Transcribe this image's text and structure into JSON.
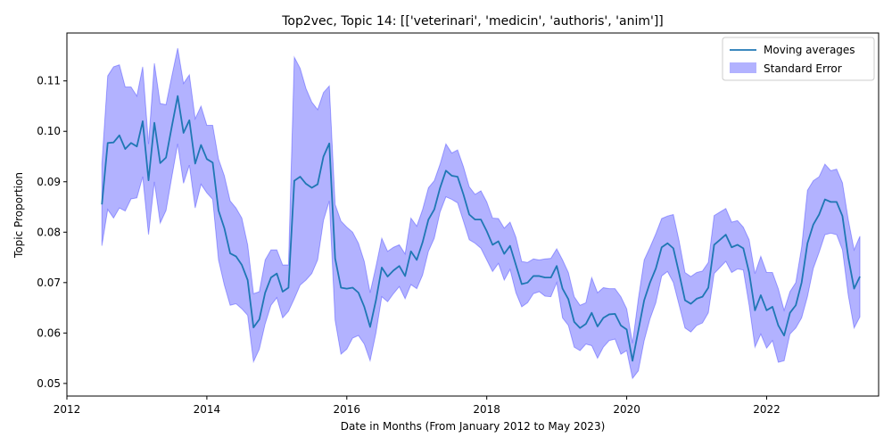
{
  "chart_data": {
    "type": "line",
    "title": "Top2vec, Topic 14: [['veterinari', 'medicin', 'authoris', 'anim']]",
    "xlabel": "Date in Months (From January 2012 to May 2023)",
    "ylabel": "Topic Proportion",
    "xlim": [
      2012.0,
      2023.6
    ],
    "ylim": [
      0.0475,
      0.1195
    ],
    "x_ticks": [
      2012,
      2014,
      2016,
      2018,
      2020,
      2022
    ],
    "x_tick_labels": [
      "2012",
      "2014",
      "2016",
      "2018",
      "2020",
      "2022"
    ],
    "y_ticks": [
      0.05,
      0.06,
      0.07,
      0.08,
      0.09,
      0.1,
      0.11
    ],
    "y_tick_labels": [
      "0.05",
      "0.06",
      "0.07",
      "0.08",
      "0.09",
      "0.10",
      "0.11"
    ],
    "grid": false,
    "legend": {
      "position": "top-right",
      "entries": [
        "Moving averages",
        "Standard Error"
      ]
    },
    "colors": {
      "line": "#1f77b4",
      "band": "#0000ff",
      "band_opacity": 0.3
    },
    "x_start": 2012.5,
    "x_step": 0.08333,
    "series": [
      {
        "name": "Moving averages",
        "values": [
          0.0855,
          0.0977,
          0.0978,
          0.0992,
          0.0965,
          0.0977,
          0.097,
          0.102,
          0.0903,
          0.1017,
          0.0937,
          0.0948,
          0.101,
          0.107,
          0.0997,
          0.1022,
          0.0936,
          0.0973,
          0.0945,
          0.0938,
          0.0843,
          0.0808,
          0.0758,
          0.0752,
          0.0735,
          0.0705,
          0.0611,
          0.0627,
          0.068,
          0.071,
          0.0718,
          0.0682,
          0.069,
          0.0902,
          0.091,
          0.0896,
          0.0888,
          0.0895,
          0.095,
          0.0976,
          0.0748,
          0.069,
          0.0688,
          0.069,
          0.068,
          0.0652,
          0.0612,
          0.0665,
          0.073,
          0.0712,
          0.0724,
          0.0733,
          0.0713,
          0.0762,
          0.0745,
          0.078,
          0.0825,
          0.0845,
          0.0888,
          0.0922,
          0.0912,
          0.091,
          0.0875,
          0.0835,
          0.0825,
          0.0825,
          0.0802,
          0.0775,
          0.0782,
          0.0757,
          0.0773,
          0.0735,
          0.0697,
          0.07,
          0.0713,
          0.0713,
          0.071,
          0.071,
          0.0733,
          0.0688,
          0.0667,
          0.0622,
          0.061,
          0.0618,
          0.064,
          0.0613,
          0.063,
          0.0637,
          0.0638,
          0.0615,
          0.0607,
          0.0545,
          0.0605,
          0.0665,
          0.07,
          0.0728,
          0.077,
          0.0778,
          0.0768,
          0.0718,
          0.0665,
          0.0658,
          0.0668,
          0.0672,
          0.069,
          0.0775,
          0.0785,
          0.0795,
          0.077,
          0.0775,
          0.0768,
          0.072,
          0.0645,
          0.0675,
          0.0645,
          0.0652,
          0.0615,
          0.0595,
          0.064,
          0.0655,
          0.07,
          0.0778,
          0.0815,
          0.0835,
          0.0865,
          0.086,
          0.086,
          0.0832,
          0.075,
          0.0688,
          0.0712
        ]
      },
      {
        "name": "Standard Error",
        "upper": [
          0.0935,
          0.111,
          0.1128,
          0.1132,
          0.1088,
          0.1088,
          0.107,
          0.1128,
          0.0975,
          0.1135,
          0.1055,
          0.1053,
          0.111,
          0.1165,
          0.1095,
          0.1112,
          0.1025,
          0.105,
          0.1012,
          0.1012,
          0.0945,
          0.0912,
          0.0862,
          0.0848,
          0.0828,
          0.0775,
          0.0678,
          0.0682,
          0.0745,
          0.0765,
          0.0765,
          0.0735,
          0.0735,
          0.1147,
          0.1125,
          0.1085,
          0.1058,
          0.1043,
          0.1077,
          0.109,
          0.0855,
          0.0822,
          0.081,
          0.08,
          0.0778,
          0.0742,
          0.068,
          0.0732,
          0.0788,
          0.0762,
          0.077,
          0.0775,
          0.0757,
          0.0828,
          0.0812,
          0.0845,
          0.0888,
          0.0902,
          0.0935,
          0.0975,
          0.0957,
          0.0963,
          0.093,
          0.089,
          0.0875,
          0.0882,
          0.086,
          0.0828,
          0.0827,
          0.0808,
          0.082,
          0.079,
          0.0742,
          0.074,
          0.0747,
          0.0745,
          0.0747,
          0.0748,
          0.0767,
          0.0745,
          0.072,
          0.0672,
          0.0655,
          0.066,
          0.071,
          0.068,
          0.069,
          0.0688,
          0.0688,
          0.0672,
          0.0648,
          0.058,
          0.0668,
          0.0745,
          0.077,
          0.0797,
          0.0827,
          0.0832,
          0.0835,
          0.0782,
          0.072,
          0.0712,
          0.072,
          0.0723,
          0.074,
          0.0833,
          0.084,
          0.0847,
          0.082,
          0.0823,
          0.081,
          0.0785,
          0.0718,
          0.0752,
          0.072,
          0.072,
          0.0688,
          0.0645,
          0.0682,
          0.07,
          0.077,
          0.0883,
          0.0902,
          0.091,
          0.0935,
          0.0922,
          0.0925,
          0.0898,
          0.0825,
          0.0765,
          0.0792
        ],
        "lower": [
          0.0773,
          0.0845,
          0.0828,
          0.0848,
          0.0842,
          0.0866,
          0.0868,
          0.091,
          0.0795,
          0.09,
          0.0818,
          0.0843,
          0.091,
          0.0975,
          0.0897,
          0.0933,
          0.0848,
          0.0895,
          0.0878,
          0.0865,
          0.0745,
          0.0695,
          0.0655,
          0.0658,
          0.0648,
          0.0635,
          0.0543,
          0.0568,
          0.0618,
          0.0655,
          0.067,
          0.063,
          0.0643,
          0.0668,
          0.0695,
          0.0705,
          0.0718,
          0.0745,
          0.0823,
          0.0862,
          0.0625,
          0.0558,
          0.0568,
          0.059,
          0.0595,
          0.0578,
          0.0545,
          0.06,
          0.0672,
          0.0662,
          0.0678,
          0.0692,
          0.0668,
          0.0696,
          0.0688,
          0.0715,
          0.0762,
          0.0788,
          0.084,
          0.087,
          0.0865,
          0.0858,
          0.0822,
          0.0785,
          0.0778,
          0.0768,
          0.0745,
          0.0722,
          0.0738,
          0.0705,
          0.0726,
          0.068,
          0.0652,
          0.066,
          0.0678,
          0.0682,
          0.0673,
          0.0672,
          0.07,
          0.063,
          0.0615,
          0.0572,
          0.0565,
          0.0578,
          0.0575,
          0.055,
          0.0572,
          0.0585,
          0.0588,
          0.0558,
          0.0565,
          0.051,
          0.0525,
          0.0585,
          0.0628,
          0.066,
          0.0713,
          0.0722,
          0.07,
          0.0655,
          0.061,
          0.0602,
          0.0615,
          0.062,
          0.064,
          0.0718,
          0.073,
          0.0742,
          0.072,
          0.0727,
          0.0725,
          0.0655,
          0.0572,
          0.0598,
          0.057,
          0.0585,
          0.0542,
          0.0545,
          0.0598,
          0.061,
          0.063,
          0.0672,
          0.0728,
          0.076,
          0.0795,
          0.0798,
          0.0795,
          0.0765,
          0.0675,
          0.061,
          0.0632
        ]
      }
    ]
  }
}
